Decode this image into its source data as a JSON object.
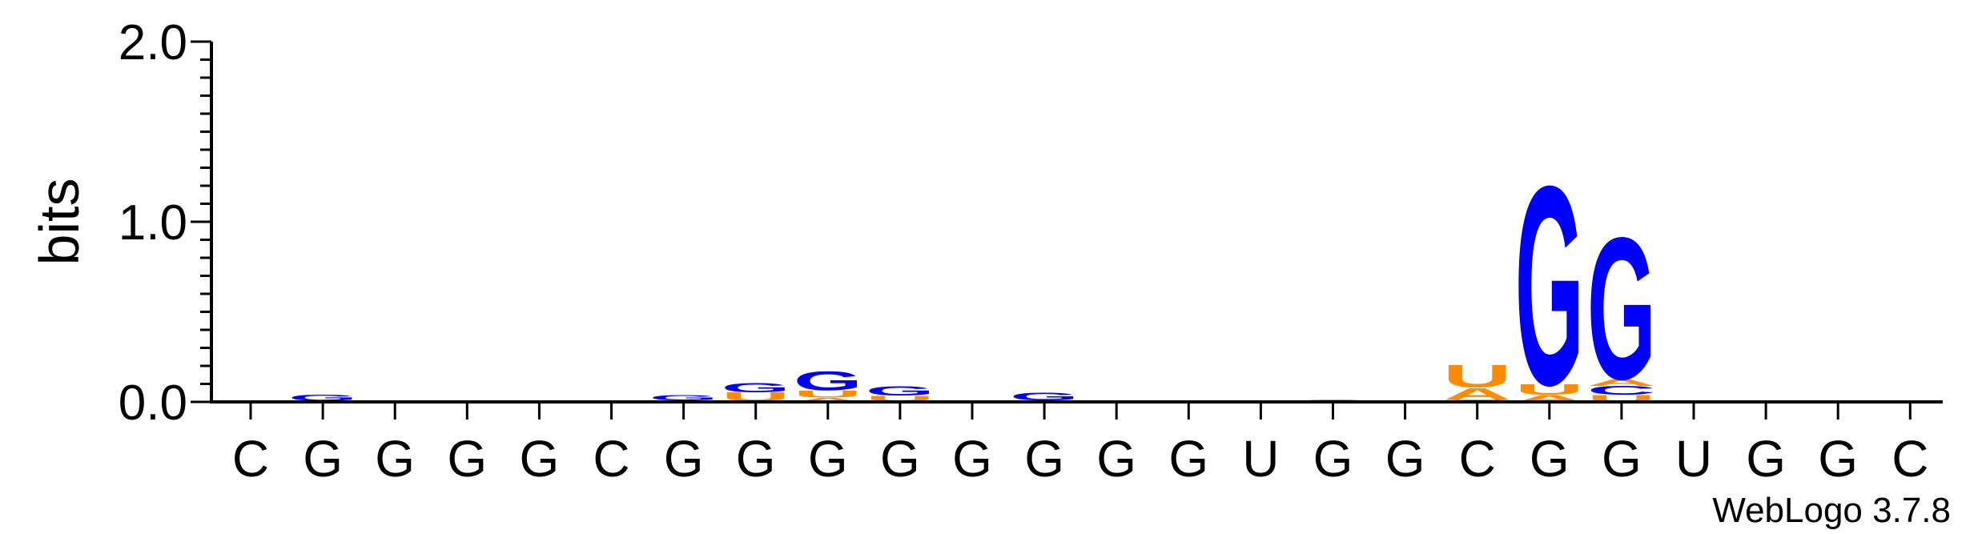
{
  "chart_data": {
    "type": "sequence-logo",
    "ylabel": "bits",
    "ylim": [
      0,
      2.0
    ],
    "yticks": [
      "0.0",
      "1.0",
      "2.0"
    ],
    "y_minor_step": 0.1,
    "credit": "WebLogo 3.7.8",
    "colors": {
      "G": "#0000ff",
      "U": "#ff8c00",
      "A": "#ff8c00",
      "C": "#0000ff"
    },
    "positions": [
      {
        "label": "C",
        "stack": []
      },
      {
        "label": "G",
        "stack": [
          {
            "letter": "U",
            "bits": 0.006
          },
          {
            "letter": "G",
            "bits": 0.035
          }
        ]
      },
      {
        "label": "G",
        "stack": [
          {
            "letter": "G",
            "bits": 0.006
          }
        ]
      },
      {
        "label": "G",
        "stack": []
      },
      {
        "label": "G",
        "stack": []
      },
      {
        "label": "C",
        "stack": []
      },
      {
        "label": "G",
        "stack": [
          {
            "letter": "U",
            "bits": 0.004
          },
          {
            "letter": "A",
            "bits": 0.006
          },
          {
            "letter": "G",
            "bits": 0.03
          }
        ]
      },
      {
        "label": "G",
        "stack": [
          {
            "letter": "A",
            "bits": 0.004
          },
          {
            "letter": "U",
            "bits": 0.05
          },
          {
            "letter": "G",
            "bits": 0.055
          }
        ]
      },
      {
        "label": "G",
        "stack": [
          {
            "letter": "A",
            "bits": 0.025
          },
          {
            "letter": "U",
            "bits": 0.04
          },
          {
            "letter": "G",
            "bits": 0.11
          }
        ]
      },
      {
        "label": "G",
        "stack": [
          {
            "letter": "A",
            "bits": 0.005
          },
          {
            "letter": "U",
            "bits": 0.03
          },
          {
            "letter": "G",
            "bits": 0.055
          }
        ]
      },
      {
        "label": "G",
        "stack": []
      },
      {
        "label": "G",
        "stack": [
          {
            "letter": "A",
            "bits": 0.004
          },
          {
            "letter": "U",
            "bits": 0.004
          },
          {
            "letter": "G",
            "bits": 0.045
          }
        ]
      },
      {
        "label": "G",
        "stack": []
      },
      {
        "label": "G",
        "stack": []
      },
      {
        "label": "U",
        "stack": []
      },
      {
        "label": "G",
        "stack": [
          {
            "letter": "G",
            "bits": 0.012
          }
        ]
      },
      {
        "label": "G",
        "stack": []
      },
      {
        "label": "C",
        "stack": [
          {
            "letter": "C",
            "bits": 0.012
          },
          {
            "letter": "A",
            "bits": 0.07
          },
          {
            "letter": "U",
            "bits": 0.13
          }
        ]
      },
      {
        "label": "G",
        "stack": [
          {
            "letter": "A",
            "bits": 0.04
          },
          {
            "letter": "U",
            "bits": 0.06
          },
          {
            "letter": "G",
            "bits": 1.15
          }
        ]
      },
      {
        "label": "G",
        "stack": [
          {
            "letter": "U",
            "bits": 0.04
          },
          {
            "letter": "C",
            "bits": 0.05
          },
          {
            "letter": "A",
            "bits": 0.04
          },
          {
            "letter": "G",
            "bits": 0.82
          }
        ]
      },
      {
        "label": "U",
        "stack": []
      },
      {
        "label": "G",
        "stack": []
      },
      {
        "label": "G",
        "stack": []
      },
      {
        "label": "C",
        "stack": []
      }
    ]
  }
}
